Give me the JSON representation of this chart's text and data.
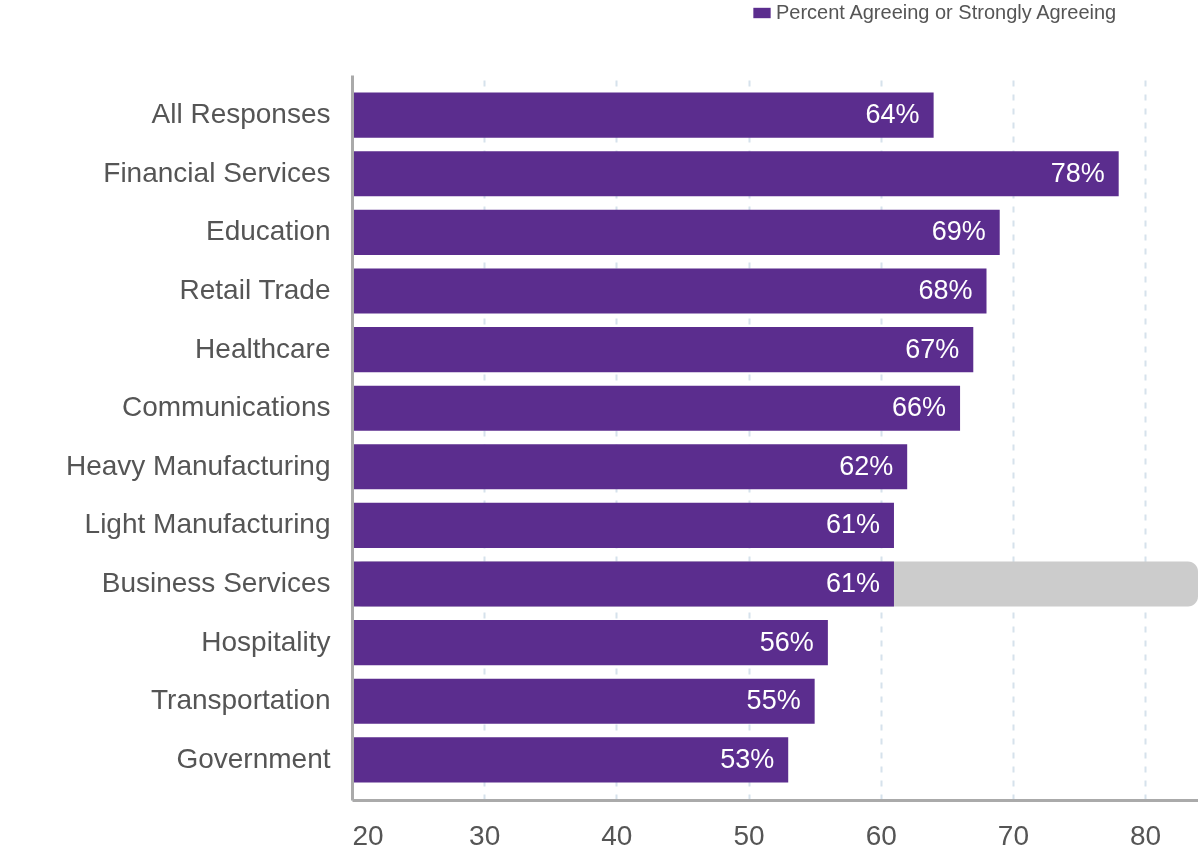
{
  "chart_data": {
    "type": "bar",
    "orientation": "horizontal",
    "categories": [
      "All Responses",
      "Financial Services",
      "Education",
      "Retail Trade",
      "Healthcare",
      "Communications",
      "Heavy Manufacturing",
      "Light Manufacturing",
      "Business Services",
      "Hospitality",
      "Transportation",
      "Government"
    ],
    "series": [
      {
        "name": "Percent Agreeing or Strongly Agreeing",
        "color": "#5b2d8e",
        "values": [
          64,
          78,
          69,
          68,
          67,
          66,
          62,
          61,
          61,
          56,
          55,
          53
        ],
        "value_labels": [
          "64%",
          "78%",
          "69%",
          "68%",
          "67%",
          "66%",
          "62%",
          "61%",
          "61%",
          "56%",
          "55%",
          "53%"
        ]
      }
    ],
    "xlim": [
      20,
      84
    ],
    "xticks": [
      20,
      30,
      40,
      50,
      60,
      70,
      80
    ],
    "grid": "x",
    "legend": "top right",
    "bands": [
      {
        "axis": "y",
        "from": "Business Services",
        "to": "Business Services",
        "color": "#cccccc"
      }
    ]
  }
}
